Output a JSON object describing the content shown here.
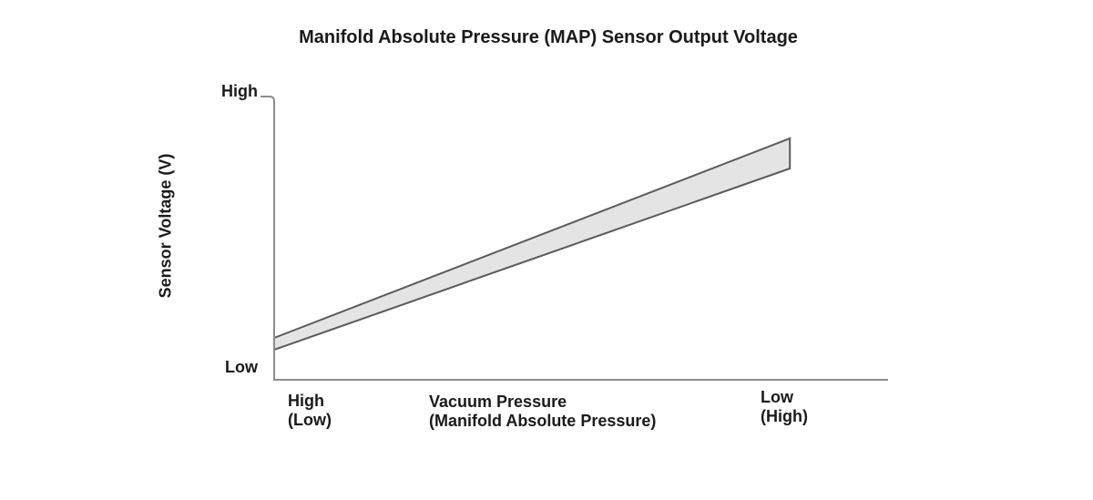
{
  "chart_data": {
    "type": "area",
    "title": "Manifold Absolute Pressure (MAP) Sensor Output Voltage",
    "ylabel": "Sensor Voltage (V)",
    "xlabel_line1": "Vacuum Pressure",
    "xlabel_line2": "(Manifold Absolute Pressure)",
    "y_axis": {
      "top_label": "High",
      "bottom_label": "Low",
      "qualitative": true
    },
    "x_axis": {
      "left_label_line1": "High",
      "left_label_line2": "(Low)",
      "right_label_line1": "Low",
      "right_label_line2": "(High)",
      "qualitative": true
    },
    "grid": false,
    "legend": "none",
    "band": {
      "name": "sensor-output-voltage-band",
      "description": "Shaded tolerance band: sensor output voltage rises approximately linearly from low voltage at high vacuum (low MAP) to high voltage at low vacuum (high MAP)",
      "x_start_frac": 0.0,
      "x_end_frac": 0.84,
      "upper_start_frac": 0.148,
      "upper_end_frac": 0.852,
      "lower_start_frac": 0.106,
      "lower_end_frac": 0.746
    },
    "colors": {
      "band_fill": "#e4e4e4",
      "band_stroke": "#5a5a5a",
      "axis": "#8c8c8c",
      "text": "#1a1a1a"
    }
  }
}
